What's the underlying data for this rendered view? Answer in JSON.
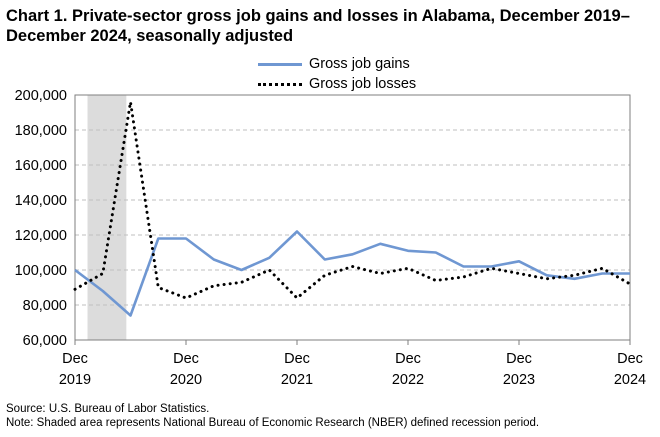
{
  "title": "Chart 1. Private-sector gross job gains and losses in Alabama, December 2019–December 2024, seasonally adjusted",
  "footer": {
    "source": "Source: U.S. Bureau of Labor Statistics.",
    "note": "Note: Shaded area represents National Bureau of Economic Research (NBER) defined recession period."
  },
  "colors": {
    "gains": "#6f97d2",
    "losses": "#000000",
    "recession": "#dcdcdc",
    "grid": "#bfbfbf"
  },
  "chart_data": {
    "type": "line",
    "title": "Chart 1. Private-sector gross job gains and losses in Alabama, December 2019–December 2024, seasonally adjusted",
    "xlabel": "",
    "ylabel": "",
    "ylim": [
      60000,
      200000
    ],
    "yticks": [
      "60,000",
      "80,000",
      "100,000",
      "120,000",
      "140,000",
      "160,000",
      "180,000",
      "200,000"
    ],
    "x": [
      "Dec 2019",
      "Mar 2020",
      "Jun 2020",
      "Sep 2020",
      "Dec 2020",
      "Mar 2021",
      "Jun 2021",
      "Sep 2021",
      "Dec 2021",
      "Mar 2022",
      "Jun 2022",
      "Sep 2022",
      "Dec 2022",
      "Mar 2023",
      "Jun 2023",
      "Sep 2023",
      "Dec 2023",
      "Mar 2024",
      "Jun 2024",
      "Sep 2024",
      "Dec 2024"
    ],
    "xtick_labels": [
      {
        "month": "Dec",
        "year": "2019"
      },
      {
        "month": "Dec",
        "year": "2020"
      },
      {
        "month": "Dec",
        "year": "2021"
      },
      {
        "month": "Dec",
        "year": "2022"
      },
      {
        "month": "Dec",
        "year": "2023"
      },
      {
        "month": "Dec",
        "year": "2024"
      }
    ],
    "recession": {
      "start": "Mar 2020",
      "end": "Jun 2020"
    },
    "grid": "horizontal dashed",
    "legend_position": "top-center",
    "series": [
      {
        "name": "Gross job gains",
        "style": "solid",
        "values": [
          100000,
          88000,
          74000,
          118000,
          118000,
          106000,
          100000,
          107000,
          122000,
          106000,
          109000,
          115000,
          111000,
          110000,
          102000,
          102000,
          105000,
          97000,
          95000,
          98000,
          98000
        ]
      },
      {
        "name": "Gross job losses",
        "style": "dotted",
        "values": [
          89000,
          98000,
          196000,
          90000,
          84000,
          91000,
          93000,
          100000,
          84000,
          97000,
          102000,
          98000,
          101000,
          94000,
          96000,
          101000,
          98000,
          95000,
          97000,
          101000,
          92000
        ]
      }
    ]
  }
}
